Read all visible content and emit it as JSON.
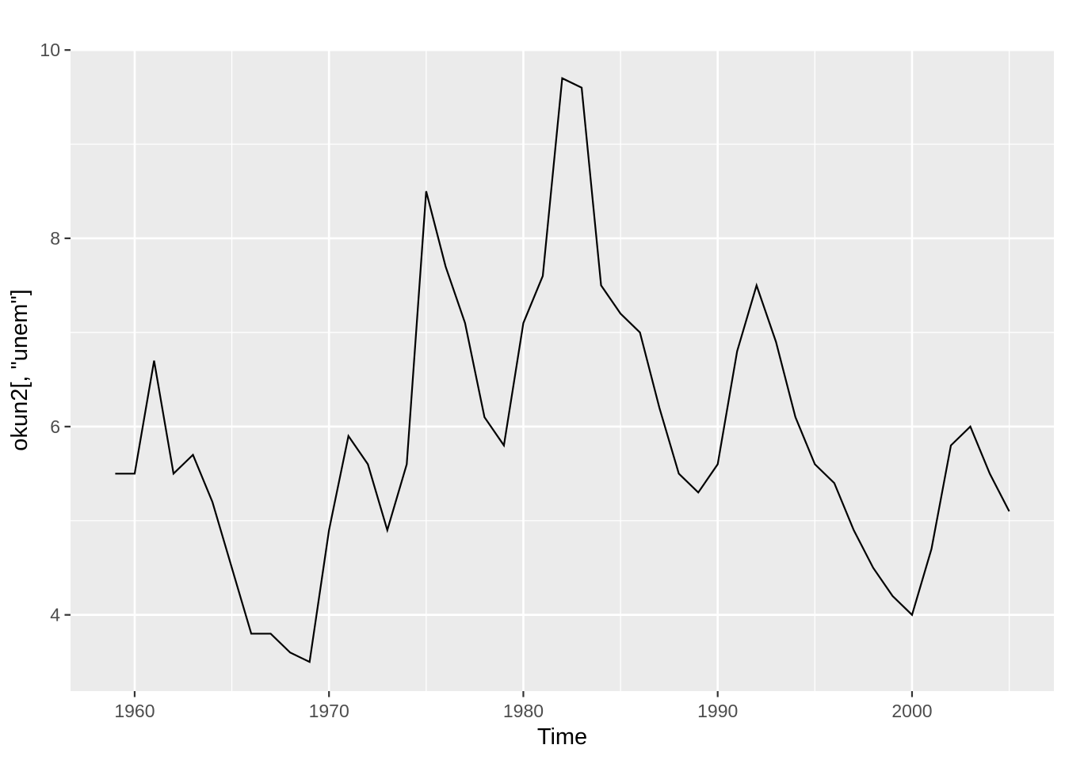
{
  "chart_data": {
    "type": "line",
    "title": "",
    "xlabel": "Time",
    "ylabel": "okun2[, \"unem\"]",
    "x": [
      1959,
      1960,
      1961,
      1962,
      1963,
      1964,
      1965,
      1966,
      1967,
      1968,
      1969,
      1970,
      1971,
      1972,
      1973,
      1974,
      1975,
      1976,
      1977,
      1978,
      1979,
      1980,
      1981,
      1982,
      1983,
      1984,
      1985,
      1986,
      1987,
      1988,
      1989,
      1990,
      1991,
      1992,
      1993,
      1994,
      1995,
      1996,
      1997,
      1998,
      1999,
      2000,
      2001,
      2002,
      2003,
      2004,
      2005
    ],
    "series": [
      {
        "name": "unem",
        "values": [
          5.5,
          5.5,
          6.7,
          5.5,
          5.7,
          5.2,
          4.5,
          3.8,
          3.8,
          3.6,
          3.5,
          4.9,
          5.9,
          5.6,
          4.9,
          5.6,
          8.5,
          7.7,
          7.1,
          6.1,
          5.8,
          7.1,
          7.6,
          9.7,
          9.6,
          7.5,
          7.2,
          7.0,
          6.2,
          5.5,
          5.3,
          5.6,
          6.8,
          7.5,
          6.9,
          6.1,
          5.6,
          5.4,
          4.9,
          4.5,
          4.2,
          4.0,
          4.7,
          5.8,
          6.0,
          5.5,
          5.1
        ]
      }
    ],
    "x_major_ticks": [
      1960,
      1970,
      1980,
      1990,
      2000
    ],
    "x_minor_gridlines": [
      1965,
      1975,
      1985,
      1995,
      2005
    ],
    "y_major_ticks": [
      4,
      6,
      8,
      10
    ],
    "y_minor_gridlines": [
      5,
      7,
      9
    ],
    "xlim": [
      1956.7,
      2007.3
    ],
    "ylim": [
      3.19,
      10.01
    ],
    "grid": true,
    "legend": "none",
    "colors": {
      "background": "#FFFFFF",
      "panel_background": "#EBEBEB",
      "grid_major": "#FFFFFF",
      "grid_minor": "#FFFFFF",
      "line": "#000000",
      "tick_label": "#4D4D4D",
      "tick_mark": "#333333",
      "axis_title": "#000000"
    }
  }
}
